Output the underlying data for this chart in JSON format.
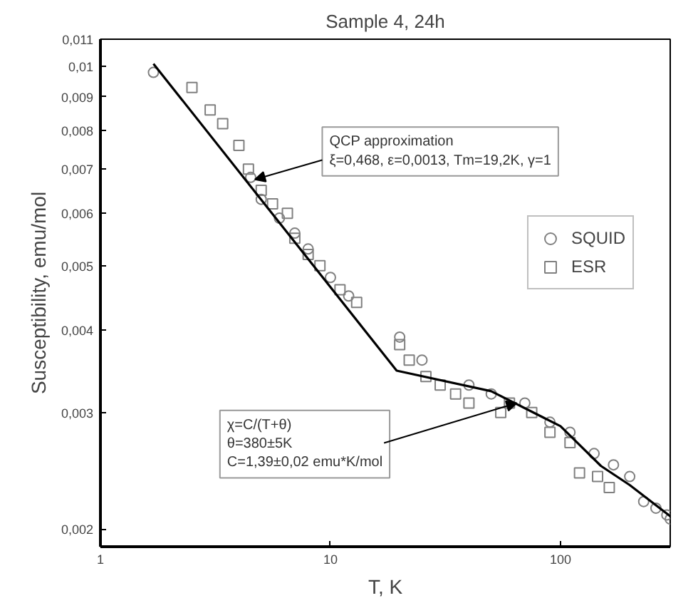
{
  "chart_data": {
    "type": "scatter",
    "title": "Sample 4, 24h",
    "xlabel": "T, K",
    "ylabel": "Susceptibility, emu/mol",
    "log": "xy",
    "xlim": [
      1,
      300
    ],
    "ylim": [
      0.00188,
      0.011
    ],
    "xticks": [
      1,
      10,
      100
    ],
    "yticks": [
      {
        "value": 0.002,
        "label": "0,002"
      },
      {
        "value": 0.003,
        "label": "0,003"
      },
      {
        "value": 0.004,
        "label": "0,004"
      },
      {
        "value": 0.005,
        "label": "0,005"
      },
      {
        "value": 0.006,
        "label": "0,006"
      },
      {
        "value": 0.007,
        "label": "0,007"
      },
      {
        "value": 0.008,
        "label": "0,008"
      },
      {
        "value": 0.009,
        "label": "0,009"
      },
      {
        "value": 0.01,
        "label": "0,01"
      },
      {
        "value": 0.011,
        "label": "0,011"
      }
    ],
    "grid": false,
    "legend": "top right",
    "series": [
      {
        "name": "SQUID",
        "marker": "circle",
        "color": "#808080",
        "x": [
          1.7,
          4.5,
          5,
          6,
          7,
          8,
          10,
          12,
          20,
          25,
          40,
          50,
          70,
          90,
          110,
          140,
          170,
          200,
          230,
          260,
          290,
          300
        ],
        "values": [
          0.0098,
          0.0068,
          0.0063,
          0.0059,
          0.0056,
          0.0053,
          0.0048,
          0.0045,
          0.0039,
          0.0036,
          0.0033,
          0.0032,
          0.0031,
          0.0029,
          0.0028,
          0.0026,
          0.0025,
          0.0024,
          0.0022,
          0.00215,
          0.0021,
          0.00207
        ]
      },
      {
        "name": "ESR",
        "marker": "square",
        "color": "#808080",
        "x": [
          2.5,
          3,
          3.4,
          4,
          4.4,
          5,
          5.6,
          6.5,
          7,
          8,
          9,
          11,
          13,
          20,
          22,
          26,
          30,
          35,
          40,
          55,
          60,
          75,
          90,
          110,
          121,
          145,
          163
        ],
        "values": [
          0.0093,
          0.0086,
          0.0082,
          0.0076,
          0.007,
          0.0065,
          0.0062,
          0.006,
          0.0055,
          0.0052,
          0.005,
          0.0046,
          0.0044,
          0.0038,
          0.0036,
          0.0034,
          0.0033,
          0.0032,
          0.0031,
          0.003,
          0.0031,
          0.003,
          0.0028,
          0.0027,
          0.00243,
          0.0024,
          0.00231
        ]
      },
      {
        "type": "line",
        "color": "#000000",
        "x": [
          1.7,
          19.4,
          50,
          100,
          150,
          200,
          300
        ],
        "values": [
          0.0101,
          0.00347,
          0.00323,
          0.00286,
          0.00249,
          0.00233,
          0.00209
        ]
      }
    ],
    "annotations": [
      {
        "text": "QCP approximation\nξ=0,468, ε=0,0013, Tm=19,2K, γ=1",
        "x": 4.7,
        "y": 0.00675
      },
      {
        "text": "χ=C/(T+θ)\nθ=380±5K\nC=1,39±0,02 emu*K/mol",
        "x": 64.5,
        "y": 0.0031
      }
    ]
  }
}
